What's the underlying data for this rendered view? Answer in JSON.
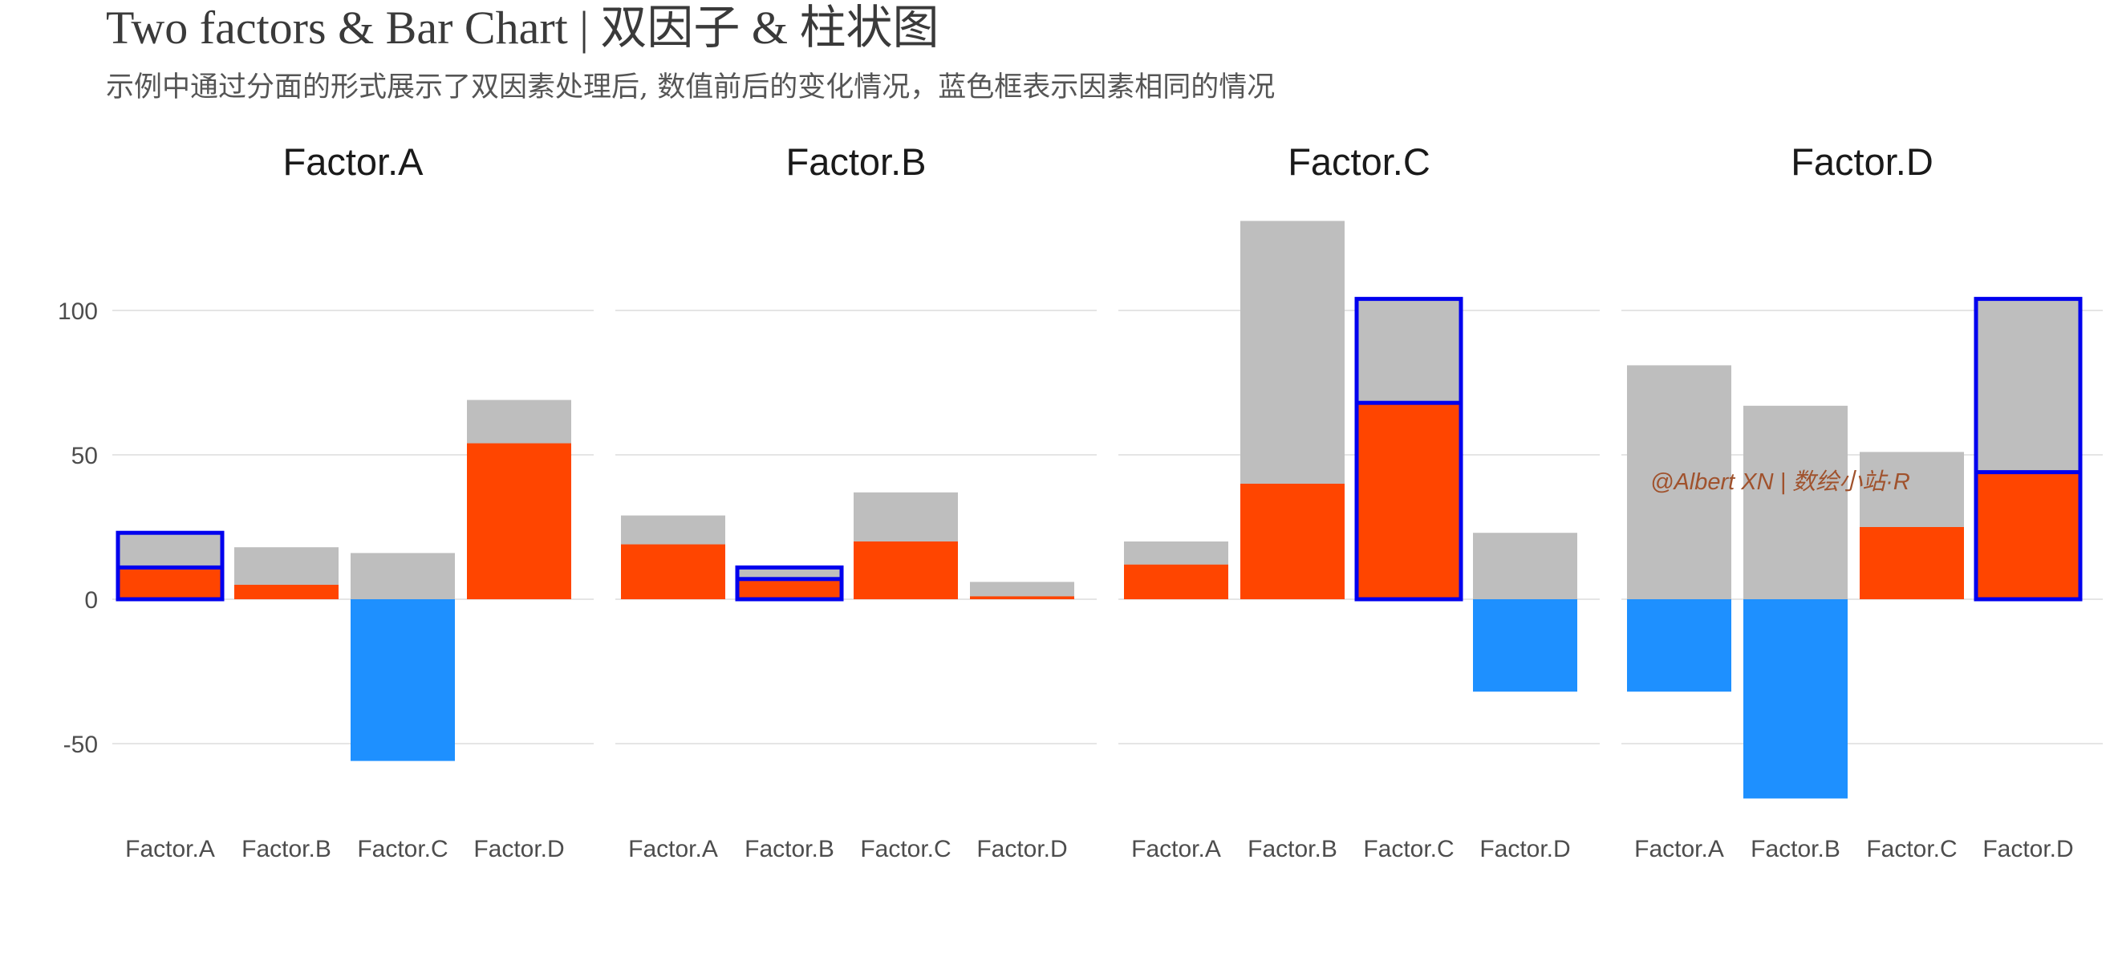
{
  "title": "Two factors & Bar Chart | 双因子 & 柱状图",
  "subtitle": "示例中通过分面的形式展示了双因素处理后, 数值前后的变化情况，蓝色框表示因素相同的情况",
  "watermark": "@Albert XN | 数绘小站·R",
  "colors": {
    "before": "#bebebe",
    "after_positive": "#ff4500",
    "after_negative": "#1e90ff",
    "highlight_outline": "#0000ee",
    "gridline": "#e5e5e5"
  },
  "chart_data": {
    "type": "bar",
    "facets": [
      "Factor.A",
      "Factor.B",
      "Factor.C",
      "Factor.D"
    ],
    "categories": [
      "Factor.A",
      "Factor.B",
      "Factor.C",
      "Factor.D"
    ],
    "y_ticks": [
      100,
      50,
      0,
      -50
    ],
    "ylim": [
      -80,
      135
    ],
    "grid": true,
    "legend": "none",
    "series": [
      {
        "values": [
          [
            23,
            18,
            16,
            69
          ],
          [
            29,
            11,
            37,
            6
          ],
          [
            20,
            131,
            104,
            23
          ],
          [
            81,
            67,
            51,
            104
          ]
        ]
      },
      {
        "values": [
          [
            11,
            5,
            -56,
            54
          ],
          [
            19,
            7,
            20,
            1
          ],
          [
            12,
            40,
            68,
            -32
          ],
          [
            -32,
            -69,
            25,
            44
          ]
        ]
      }
    ],
    "highlight": "diagonal (same factor)"
  }
}
